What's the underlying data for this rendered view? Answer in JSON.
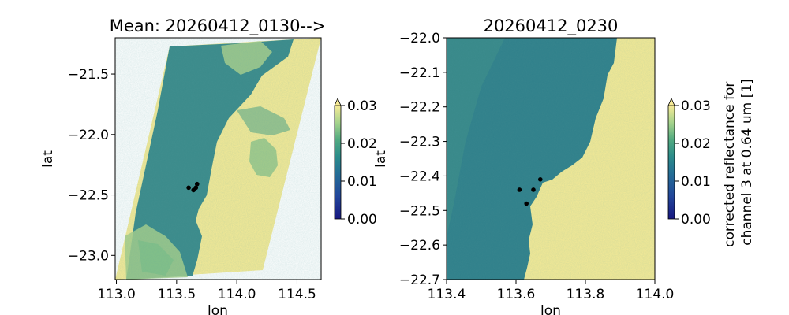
{
  "chart_data": [
    {
      "type": "heatmap",
      "title": "Mean: 20260412_0130-->",
      "xlabel": "lon",
      "ylabel": "lat",
      "xlim": [
        112.99,
        114.7
      ],
      "ylim": [
        -23.2,
        -21.2
      ],
      "xticks": [
        "113.0",
        "113.5",
        "114.0",
        "114.5"
      ],
      "yticks": [
        "−21.5",
        "−22.0",
        "−22.5",
        "−23.0"
      ],
      "swath_corners_lonlat": [
        [
          114.7,
          -21.2
        ],
        [
          114.22,
          -23.12
        ],
        [
          113.0,
          -23.2
        ],
        [
          113.45,
          -21.27
        ]
      ],
      "points": [
        [
          113.6,
          -22.44
        ],
        [
          113.64,
          -22.46
        ],
        [
          113.66,
          -22.44
        ],
        [
          113.67,
          -22.41
        ]
      ],
      "colorbar": {
        "min": 0.0,
        "max": 0.03,
        "ticks": [
          "0.00",
          "0.01",
          "0.02",
          "0.03"
        ],
        "extend": "max",
        "label": ""
      }
    },
    {
      "type": "heatmap",
      "title": "20260412_0230",
      "xlabel": "lon",
      "ylabel": "lat",
      "xlim": [
        113.4,
        114.0
      ],
      "ylim": [
        -22.7,
        -22.0
      ],
      "xticks": [
        "113.4",
        "113.6",
        "113.8",
        "114.0"
      ],
      "yticks": [
        "−22.0",
        "−22.1",
        "−22.2",
        "−22.3",
        "−22.4",
        "−22.5",
        "−22.6",
        "−22.7"
      ],
      "points": [
        [
          113.61,
          -22.44
        ],
        [
          113.63,
          -22.48
        ],
        [
          113.65,
          -22.44
        ],
        [
          113.67,
          -22.41
        ]
      ],
      "colorbar": {
        "min": 0.0,
        "max": 0.03,
        "ticks": [
          "0.00",
          "0.01",
          "0.02",
          "0.03"
        ],
        "extend": "max",
        "label": "corrected reflectance for channel 3 at 0.64 um [1]"
      }
    }
  ],
  "colors": {
    "water": "#2f7f8a",
    "land": "#f7eb96",
    "cloud": "#a8cf8a"
  }
}
